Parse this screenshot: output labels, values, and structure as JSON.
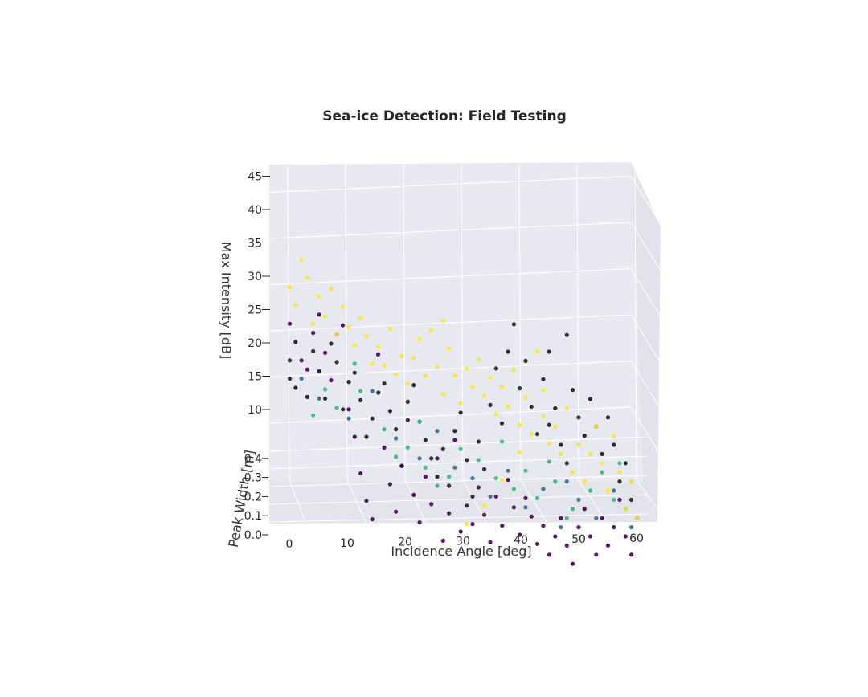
{
  "chart_data": {
    "type": "scatter",
    "projection": "3d",
    "title": "Sea-ice Detection: Field Testing",
    "axes": {
      "x": {
        "label": "Incidence Angle [deg]",
        "ticks": [
          "0",
          "10",
          "20",
          "30",
          "40",
          "50",
          "60"
        ],
        "range": [
          -2,
          62
        ]
      },
      "y": {
        "label": "Peak Width [m]",
        "ticks": [
          "0.0",
          "0.1",
          "0.2",
          "0.3",
          "0.4"
        ],
        "range": [
          0,
          0.5
        ]
      },
      "z": {
        "label": "Max Intensity [dB]",
        "ticks": [
          "10",
          "15",
          "20",
          "25",
          "30",
          "35",
          "40",
          "45"
        ],
        "range": [
          8,
          46
        ]
      }
    },
    "grid": true,
    "legend": "none",
    "colors": {
      "pane": "#e8e8f0",
      "grid": "#ffffff",
      "series": [
        "#1a1a1a",
        "#440154",
        "#31688e",
        "#35b779",
        "#fde725"
      ]
    },
    "series": [
      {
        "color": "#1a1a1a",
        "points": [
          [
            0,
            0.1,
            26
          ],
          [
            0,
            0.1,
            24
          ],
          [
            1,
            0.1,
            23
          ],
          [
            3,
            0.1,
            22
          ],
          [
            5,
            0.15,
            25
          ],
          [
            7,
            0.15,
            28
          ],
          [
            8,
            0.15,
            26
          ],
          [
            10,
            0.2,
            24
          ],
          [
            12,
            0.2,
            22
          ],
          [
            14,
            0.2,
            20
          ],
          [
            15,
            0.25,
            23
          ],
          [
            17,
            0.25,
            21
          ],
          [
            18,
            0.25,
            19
          ],
          [
            20,
            0.25,
            22
          ],
          [
            21,
            0.3,
            24
          ],
          [
            22,
            0.3,
            20
          ],
          [
            23,
            0.3,
            18
          ],
          [
            24,
            0.3,
            16
          ],
          [
            25,
            0.3,
            14
          ],
          [
            26,
            0.3,
            17
          ],
          [
            27,
            0.3,
            13
          ],
          [
            28,
            0.3,
            19
          ],
          [
            30,
            0.35,
            16
          ],
          [
            31,
            0.35,
            12
          ],
          [
            32,
            0.35,
            18
          ],
          [
            33,
            0.35,
            15
          ],
          [
            34,
            0.35,
            22
          ],
          [
            35,
            0.35,
            26
          ],
          [
            36,
            0.35,
            20
          ],
          [
            37,
            0.4,
            28
          ],
          [
            38,
            0.4,
            31
          ],
          [
            39,
            0.4,
            24
          ],
          [
            40,
            0.4,
            27
          ],
          [
            41,
            0.4,
            22
          ],
          [
            42,
            0.4,
            19
          ],
          [
            43,
            0.4,
            25
          ],
          [
            44,
            0.4,
            20
          ],
          [
            45,
            0.45,
            22
          ],
          [
            46,
            0.45,
            18
          ],
          [
            47,
            0.45,
            16
          ],
          [
            48,
            0.45,
            24
          ],
          [
            49,
            0.45,
            21
          ],
          [
            50,
            0.45,
            19
          ],
          [
            51,
            0.45,
            23
          ],
          [
            52,
            0.45,
            20
          ],
          [
            53,
            0.45,
            17
          ],
          [
            54,
            0.45,
            21
          ],
          [
            55,
            0.45,
            18
          ],
          [
            56,
            0.45,
            14
          ],
          [
            57,
            0.45,
            16
          ],
          [
            58,
            0.45,
            12
          ],
          [
            4,
            0.1,
            27
          ],
          [
            6,
            0.15,
            22
          ],
          [
            9,
            0.2,
            21
          ],
          [
            11,
            0.2,
            25
          ],
          [
            13,
            0.2,
            18
          ],
          [
            16,
            0.25,
            24
          ],
          [
            19,
            0.25,
            15
          ],
          [
            29,
            0.3,
            21
          ],
          [
            44,
            0.4,
            28
          ],
          [
            47,
            0.45,
            30
          ]
        ]
      },
      {
        "color": "#440154",
        "points": [
          [
            0,
            0.1,
            30
          ],
          [
            1,
            0.1,
            28
          ],
          [
            2,
            0.1,
            26
          ],
          [
            3,
            0.1,
            25
          ],
          [
            4,
            0.1,
            29
          ],
          [
            6,
            0.15,
            27
          ],
          [
            7,
            0.15,
            24
          ],
          [
            8,
            0.15,
            29
          ],
          [
            10,
            0.2,
            21
          ],
          [
            11,
            0.2,
            18
          ],
          [
            12,
            0.2,
            14
          ],
          [
            13,
            0.2,
            11
          ],
          [
            14,
            0.2,
            9
          ],
          [
            16,
            0.25,
            17
          ],
          [
            17,
            0.25,
            13
          ],
          [
            18,
            0.25,
            10
          ],
          [
            19,
            0.25,
            15
          ],
          [
            21,
            0.3,
            12
          ],
          [
            22,
            0.3,
            9
          ],
          [
            23,
            0.3,
            14
          ],
          [
            24,
            0.3,
            11
          ],
          [
            26,
            0.3,
            7
          ],
          [
            27,
            0.3,
            10
          ],
          [
            29,
            0.3,
            8
          ],
          [
            30,
            0.35,
            11
          ],
          [
            31,
            0.35,
            9
          ],
          [
            32,
            0.35,
            13
          ],
          [
            33,
            0.35,
            10
          ],
          [
            34,
            0.35,
            7
          ],
          [
            35,
            0.35,
            12
          ],
          [
            36,
            0.4,
            9
          ],
          [
            37,
            0.4,
            14
          ],
          [
            38,
            0.4,
            11
          ],
          [
            39,
            0.4,
            8
          ],
          [
            40,
            0.4,
            12
          ],
          [
            41,
            0.4,
            10
          ],
          [
            42,
            0.4,
            7
          ],
          [
            43,
            0.4,
            9
          ],
          [
            44,
            0.45,
            6
          ],
          [
            45,
            0.45,
            8
          ],
          [
            46,
            0.45,
            10
          ],
          [
            47,
            0.45,
            7
          ],
          [
            48,
            0.45,
            5
          ],
          [
            49,
            0.45,
            9
          ],
          [
            50,
            0.45,
            11
          ],
          [
            51,
            0.45,
            8
          ],
          [
            52,
            0.45,
            6
          ],
          [
            53,
            0.45,
            10
          ],
          [
            54,
            0.45,
            7
          ],
          [
            55,
            0.45,
            9
          ],
          [
            56,
            0.45,
            12
          ],
          [
            57,
            0.45,
            8
          ],
          [
            58,
            0.45,
            6
          ],
          [
            59,
            0.45,
            10
          ],
          [
            5,
            0.1,
            31
          ],
          [
            9,
            0.15,
            30
          ],
          [
            15,
            0.2,
            27
          ],
          [
            20,
            0.25,
            20
          ],
          [
            25,
            0.3,
            16
          ],
          [
            28,
            0.3,
            18
          ]
        ]
      },
      {
        "color": "#31688e",
        "points": [
          [
            2,
            0.1,
            24
          ],
          [
            5,
            0.15,
            22
          ],
          [
            10,
            0.2,
            20
          ],
          [
            14,
            0.2,
            23
          ],
          [
            18,
            0.25,
            18
          ],
          [
            22,
            0.3,
            16
          ],
          [
            25,
            0.3,
            19
          ],
          [
            28,
            0.3,
            15
          ],
          [
            31,
            0.35,
            14
          ],
          [
            34,
            0.35,
            12
          ],
          [
            37,
            0.4,
            15
          ],
          [
            40,
            0.4,
            11
          ],
          [
            43,
            0.4,
            13
          ],
          [
            46,
            0.45,
            9
          ],
          [
            49,
            0.45,
            12
          ],
          [
            52,
            0.45,
            10
          ],
          [
            55,
            0.45,
            13
          ],
          [
            57,
            0.45,
            11
          ],
          [
            58,
            0.45,
            9
          ],
          [
            47,
            0.45,
            14
          ]
        ]
      },
      {
        "color": "#35b779",
        "points": [
          [
            4,
            0.1,
            20
          ],
          [
            6,
            0.15,
            23
          ],
          [
            8,
            0.15,
            21
          ],
          [
            12,
            0.2,
            23
          ],
          [
            16,
            0.25,
            19
          ],
          [
            18,
            0.25,
            16
          ],
          [
            20,
            0.25,
            17
          ],
          [
            23,
            0.3,
            15
          ],
          [
            25,
            0.3,
            13
          ],
          [
            27,
            0.3,
            14
          ],
          [
            29,
            0.3,
            17
          ],
          [
            32,
            0.35,
            16
          ],
          [
            35,
            0.35,
            14
          ],
          [
            38,
            0.4,
            13
          ],
          [
            40,
            0.4,
            15
          ],
          [
            42,
            0.4,
            12
          ],
          [
            45,
            0.45,
            14
          ],
          [
            48,
            0.45,
            11
          ],
          [
            51,
            0.45,
            13
          ],
          [
            53,
            0.45,
            15
          ],
          [
            55,
            0.45,
            12
          ],
          [
            56,
            0.45,
            16
          ],
          [
            58,
            0.45,
            14
          ],
          [
            44,
            0.4,
            16
          ],
          [
            47,
            0.45,
            10
          ],
          [
            36,
            0.35,
            18
          ],
          [
            22,
            0.3,
            20
          ],
          [
            11,
            0.2,
            26
          ]
        ]
      },
      {
        "color": "#fde725",
        "points": [
          [
            0,
            0.1,
            34
          ],
          [
            1,
            0.1,
            32
          ],
          [
            2,
            0.1,
            37
          ],
          [
            3,
            0.1,
            35
          ],
          [
            4,
            0.1,
            30
          ],
          [
            5,
            0.1,
            33
          ],
          [
            6,
            0.15,
            31
          ],
          [
            7,
            0.15,
            34
          ],
          [
            8,
            0.15,
            29
          ],
          [
            9,
            0.15,
            32
          ],
          [
            10,
            0.2,
            30
          ],
          [
            11,
            0.2,
            28
          ],
          [
            12,
            0.2,
            31
          ],
          [
            13,
            0.2,
            29
          ],
          [
            14,
            0.2,
            26
          ],
          [
            15,
            0.25,
            28
          ],
          [
            16,
            0.25,
            26
          ],
          [
            17,
            0.25,
            30
          ],
          [
            18,
            0.25,
            25
          ],
          [
            19,
            0.25,
            27
          ],
          [
            20,
            0.25,
            24
          ],
          [
            21,
            0.3,
            27
          ],
          [
            22,
            0.3,
            29
          ],
          [
            23,
            0.3,
            25
          ],
          [
            24,
            0.3,
            30
          ],
          [
            25,
            0.3,
            26
          ],
          [
            26,
            0.3,
            23
          ],
          [
            27,
            0.3,
            28
          ],
          [
            28,
            0.3,
            25
          ],
          [
            29,
            0.3,
            22
          ],
          [
            30,
            0.35,
            26
          ],
          [
            31,
            0.35,
            24
          ],
          [
            32,
            0.35,
            27
          ],
          [
            33,
            0.35,
            23
          ],
          [
            34,
            0.35,
            25
          ],
          [
            35,
            0.35,
            21
          ],
          [
            36,
            0.35,
            24
          ],
          [
            37,
            0.4,
            22
          ],
          [
            38,
            0.4,
            26
          ],
          [
            39,
            0.4,
            20
          ],
          [
            40,
            0.4,
            23
          ],
          [
            41,
            0.4,
            19
          ],
          [
            42,
            0.4,
            28
          ],
          [
            43,
            0.4,
            21
          ],
          [
            44,
            0.4,
            18
          ],
          [
            45,
            0.45,
            20
          ],
          [
            46,
            0.45,
            17
          ],
          [
            47,
            0.45,
            22
          ],
          [
            48,
            0.45,
            15
          ],
          [
            49,
            0.45,
            18
          ],
          [
            50,
            0.45,
            14
          ],
          [
            51,
            0.45,
            17
          ],
          [
            52,
            0.45,
            20
          ],
          [
            53,
            0.45,
            16
          ],
          [
            54,
            0.45,
            13
          ],
          [
            55,
            0.45,
            19
          ],
          [
            56,
            0.45,
            15
          ],
          [
            57,
            0.45,
            11
          ],
          [
            58,
            0.45,
            14
          ],
          [
            59,
            0.45,
            10
          ],
          [
            30,
            0.35,
            9
          ],
          [
            33,
            0.35,
            11
          ],
          [
            36,
            0.4,
            14
          ],
          [
            39,
            0.4,
            17
          ],
          [
            43,
            0.45,
            24
          ],
          [
            26,
            0.3,
            31
          ]
        ]
      }
    ]
  }
}
